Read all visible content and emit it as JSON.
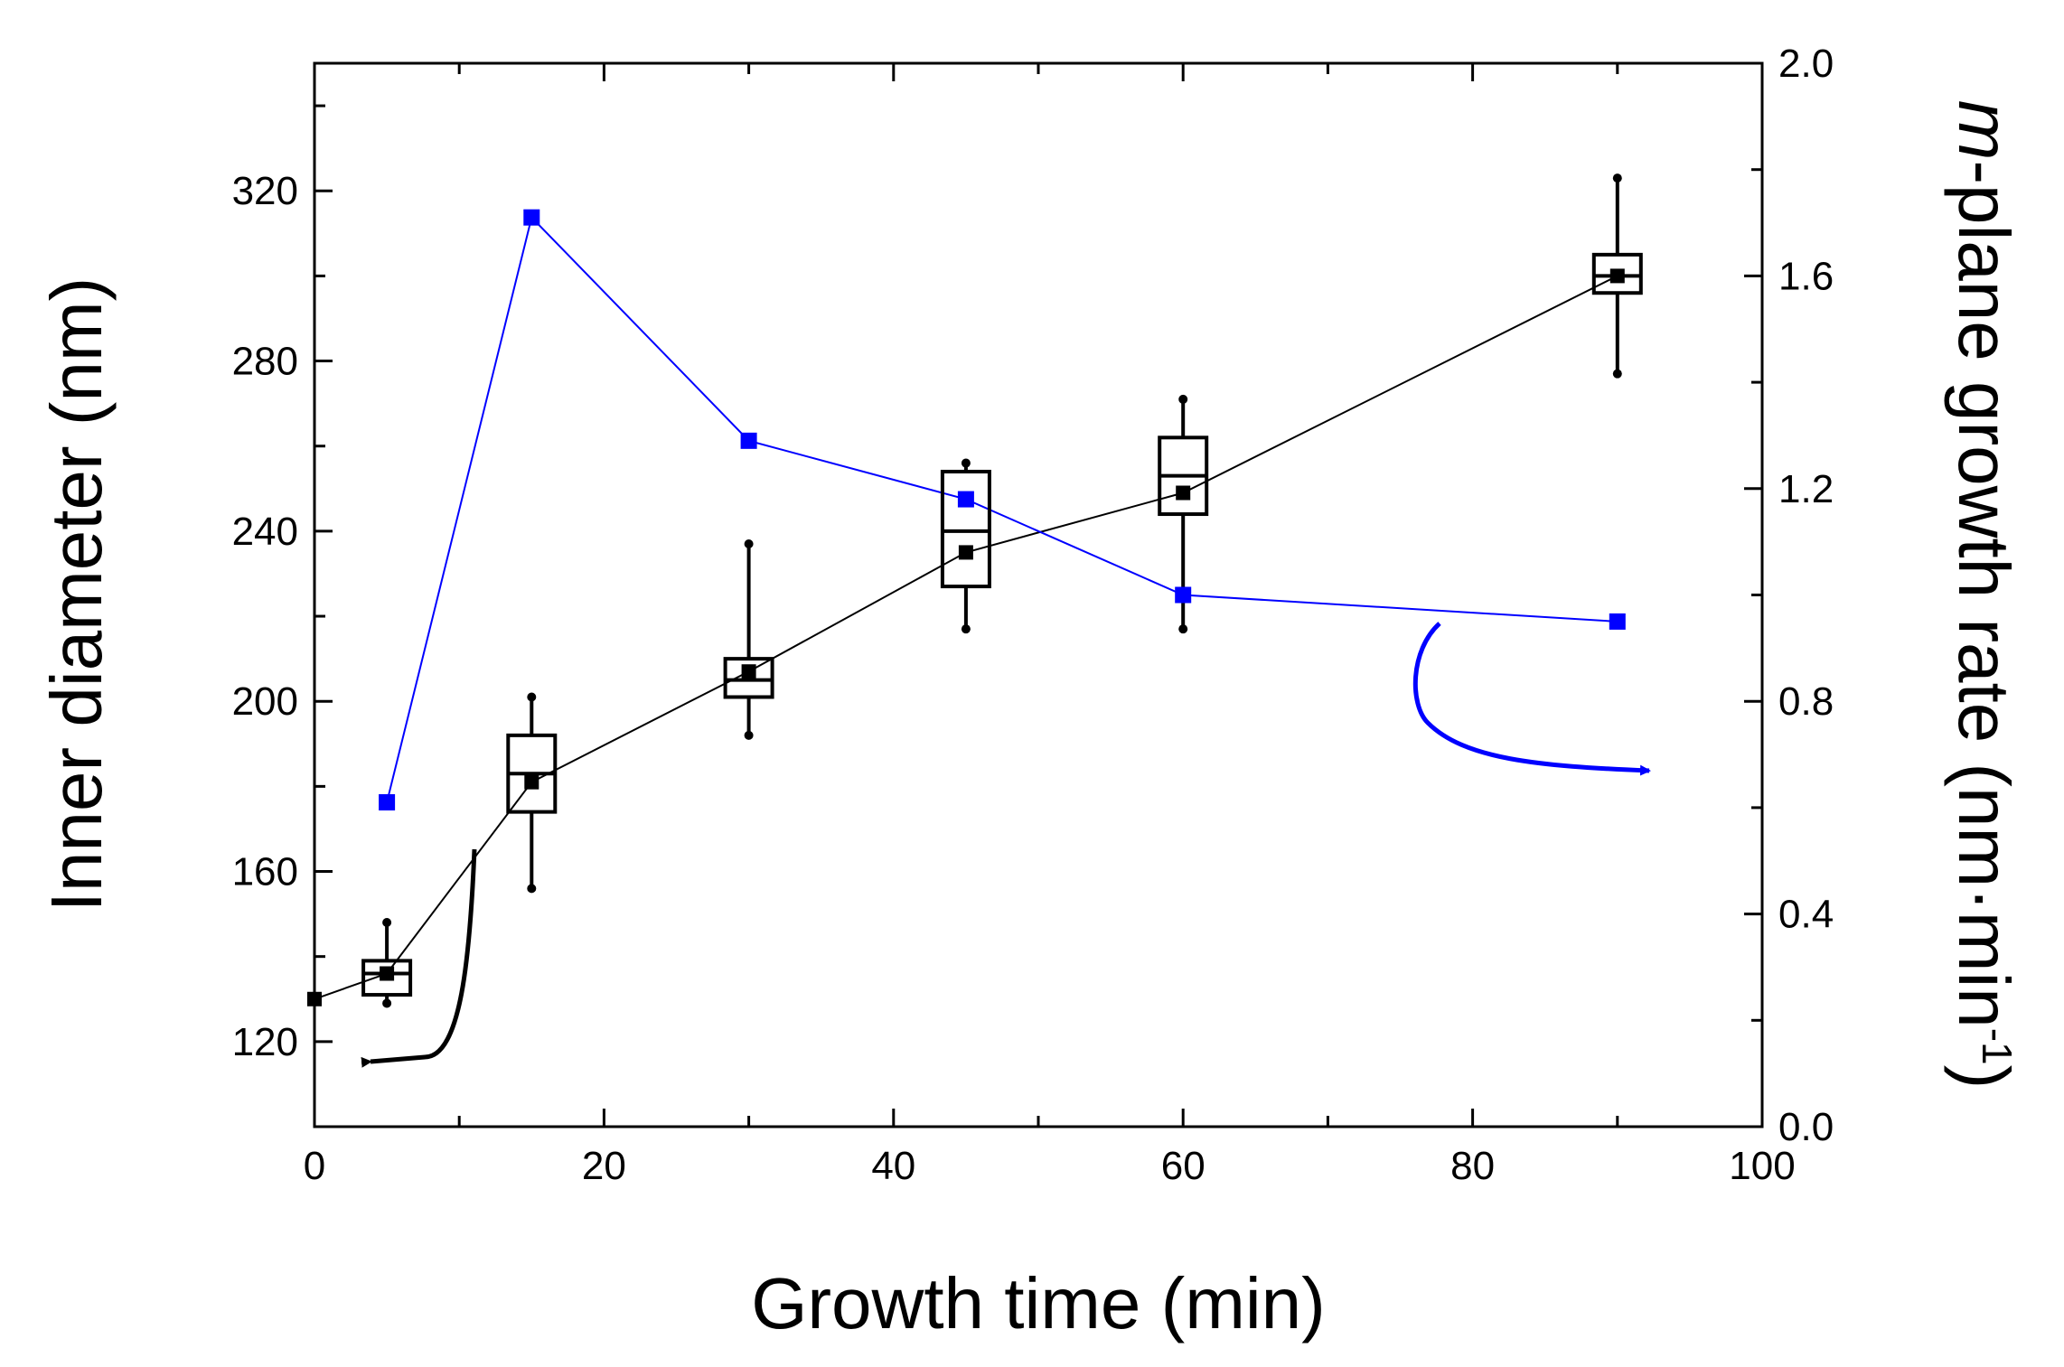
{
  "chart_data": {
    "type": "box_plot_with_line_dual_axis",
    "xlabel": "Growth time (min)",
    "ylabel_left": "Inner diameter (nm)",
    "ylabel_right": {
      "italic_part": "m",
      "rest": "-plane growth rate (nm·min",
      "superscript": "-1",
      "close": ")"
    },
    "xlim": [
      0,
      100
    ],
    "ylim_left": [
      100,
      350
    ],
    "ylim_right": [
      0.0,
      2.0
    ],
    "x_ticks": [
      0,
      20,
      40,
      60,
      80,
      100
    ],
    "x_tick_labels": [
      "0",
      "20",
      "40",
      "60",
      "80",
      "100"
    ],
    "y_left_ticks": [
      120,
      160,
      200,
      240,
      280,
      320
    ],
    "y_left_tick_labels": [
      "120",
      "160",
      "200",
      "240",
      "280",
      "320"
    ],
    "y_right_ticks": [
      0.0,
      0.4,
      0.8,
      1.2,
      1.6,
      2.0
    ],
    "y_right_tick_labels": [
      "0.0",
      "0.4",
      "0.8",
      "1.2",
      "1.6",
      "2.0"
    ],
    "series": [
      {
        "name": "Inner diameter",
        "axis": "left",
        "color": "#000000",
        "x": [
          0,
          5,
          15,
          30,
          45,
          60,
          90
        ],
        "mean": [
          130,
          136,
          181,
          207,
          235,
          249,
          300
        ]
      },
      {
        "name": "m-plane growth rate",
        "axis": "right",
        "color": "#0000ff",
        "x": [
          5,
          15,
          30,
          45,
          60,
          90
        ],
        "values": [
          0.61,
          1.71,
          1.29,
          1.18,
          1.0,
          0.95
        ]
      }
    ],
    "boxes": [
      {
        "x": 5,
        "whisker_low": 129,
        "q1": 131,
        "median": 136,
        "q3": 139,
        "whisker_high": 148
      },
      {
        "x": 15,
        "whisker_low": 156,
        "q1": 174,
        "median": 183,
        "q3": 192,
        "whisker_high": 201
      },
      {
        "x": 30,
        "whisker_low": 192,
        "q1": 201,
        "median": 205,
        "q3": 210,
        "whisker_high": 237
      },
      {
        "x": 45,
        "whisker_low": 217,
        "q1": 227,
        "median": 240,
        "q3": 254,
        "whisker_high": 256
      },
      {
        "x": 60,
        "whisker_low": 217,
        "q1": 244,
        "median": 253,
        "q3": 262,
        "whisker_high": 271
      },
      {
        "x": 90,
        "whisker_low": 277,
        "q1": 296,
        "median": 300,
        "q3": 305,
        "whisker_high": 323
      }
    ],
    "annotations": [
      {
        "type": "arrow",
        "color": "#000000",
        "meaning": "black series uses left axis"
      },
      {
        "type": "arrow",
        "color": "#0000ff",
        "meaning": "blue series uses right axis"
      }
    ]
  }
}
